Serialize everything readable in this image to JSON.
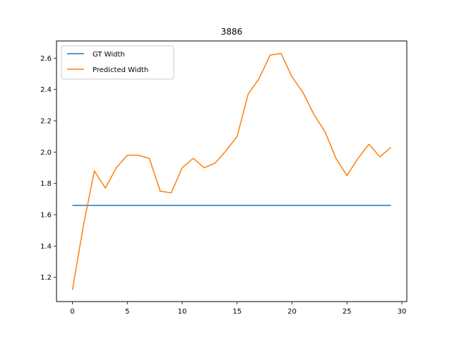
{
  "chart_data": {
    "type": "line",
    "title": "3886",
    "xlabel": "",
    "ylabel": "",
    "xlim": [
      -1.45,
      30.45
    ],
    "ylim": [
      1.045,
      2.71
    ],
    "xticks": [
      0,
      5,
      10,
      15,
      20,
      25,
      30
    ],
    "yticks": [
      1.2,
      1.4,
      1.6,
      1.8,
      2.0,
      2.2,
      2.4,
      2.6
    ],
    "xtick_labels": [
      "0",
      "5",
      "10",
      "15",
      "20",
      "25",
      "30"
    ],
    "ytick_labels": [
      "1.2",
      "1.4",
      "1.6",
      "1.8",
      "2.0",
      "2.2",
      "2.4",
      "2.6"
    ],
    "grid": false,
    "legend_position": "top-left",
    "x": [
      0,
      1,
      2,
      3,
      4,
      5,
      6,
      7,
      8,
      9,
      10,
      11,
      12,
      13,
      14,
      15,
      16,
      17,
      18,
      19,
      20,
      21,
      22,
      23,
      24,
      25,
      26,
      27,
      28,
      29
    ],
    "series": [
      {
        "name": "GT Width",
        "color": "#1f77b4",
        "values": [
          1.66,
          1.66,
          1.66,
          1.66,
          1.66,
          1.66,
          1.66,
          1.66,
          1.66,
          1.66,
          1.66,
          1.66,
          1.66,
          1.66,
          1.66,
          1.66,
          1.66,
          1.66,
          1.66,
          1.66,
          1.66,
          1.66,
          1.66,
          1.66,
          1.66,
          1.66,
          1.66,
          1.66,
          1.66,
          1.66
        ]
      },
      {
        "name": "Predicted Width",
        "color": "#ff7f0e",
        "values": [
          1.12,
          1.53,
          1.88,
          1.77,
          1.9,
          1.98,
          1.98,
          1.96,
          1.75,
          1.74,
          1.9,
          1.96,
          1.9,
          1.93,
          2.01,
          2.1,
          2.37,
          2.47,
          2.62,
          2.63,
          2.48,
          2.38,
          2.24,
          2.13,
          1.96,
          1.85,
          1.96,
          2.05,
          1.97,
          2.03
        ]
      }
    ]
  }
}
